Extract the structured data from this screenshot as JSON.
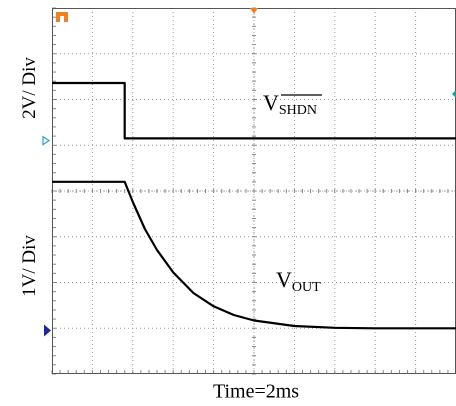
{
  "chart_data": {
    "type": "line",
    "title": "",
    "xlabel": "Time=2ms",
    "y_scales": [
      "2V/ Div",
      "1V/ Div"
    ],
    "grid": true,
    "x_divisions": 10,
    "y_divisions": 8,
    "x_range_div": [
      0,
      10
    ],
    "y_range_div": [
      0,
      8
    ],
    "series": [
      {
        "name": "V",
        "subscript": "SHDN",
        "overline": true,
        "color": "#000000",
        "points": [
          [
            0.0,
            6.36
          ],
          [
            1.8,
            6.36
          ],
          [
            1.8,
            5.15
          ],
          [
            10.0,
            5.15
          ]
        ]
      },
      {
        "name": "V",
        "subscript": "OUT",
        "overline": false,
        "color": "#000000",
        "points": [
          [
            0.0,
            4.2
          ],
          [
            1.8,
            4.2
          ],
          [
            2.0,
            3.76
          ],
          [
            2.3,
            3.17
          ],
          [
            2.6,
            2.71
          ],
          [
            3.0,
            2.22
          ],
          [
            3.5,
            1.77
          ],
          [
            4.0,
            1.48
          ],
          [
            4.5,
            1.29
          ],
          [
            5.0,
            1.17
          ],
          [
            6.0,
            1.05
          ],
          [
            7.0,
            1.01
          ],
          [
            8.0,
            1.0
          ],
          [
            10.0,
            1.0
          ]
        ]
      }
    ],
    "markers": [
      {
        "name": "trigger-level",
        "color": "#f08020",
        "shape": "T"
      },
      {
        "name": "trigger-position",
        "color": "#f08020",
        "shape": "arrow-down"
      },
      {
        "name": "ch1-offset",
        "color": "#2aa0c8",
        "shape": "arrow-right-outline"
      },
      {
        "name": "ch2-offset",
        "color": "#1a2a9a",
        "shape": "arrow-right-filled"
      },
      {
        "name": "ch1-ref",
        "color": "#1aa090",
        "shape": "diamond"
      }
    ]
  }
}
